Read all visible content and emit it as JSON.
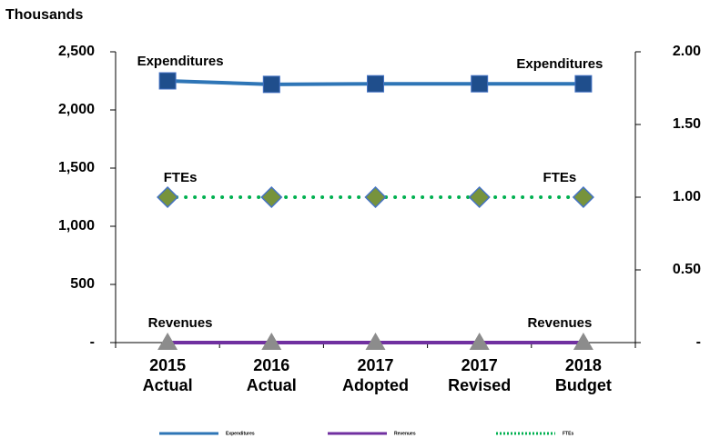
{
  "chart_data": {
    "type": "line",
    "y_axis_label": "Thousands",
    "categories": [
      [
        "2015",
        "Actual"
      ],
      [
        "2016",
        "Actual"
      ],
      [
        "2017",
        "Adopted"
      ],
      [
        "2017",
        "Revised"
      ],
      [
        "2018",
        "Budget"
      ]
    ],
    "ylim": [
      0,
      2500
    ],
    "yticks": [
      {
        "value": 0,
        "label": "-"
      },
      500,
      {
        "value": 1000,
        "label": "1,000"
      },
      {
        "value": 1500,
        "label": "1,500"
      },
      {
        "value": 2000,
        "label": "2,000"
      },
      {
        "value": 2500,
        "label": "2,500"
      }
    ],
    "y2lim": [
      0,
      2
    ],
    "y2ticks": [
      {
        "value": 0,
        "label": "-"
      },
      {
        "value": 0.5,
        "label": "0.50"
      },
      {
        "value": 1,
        "label": "1.00"
      },
      {
        "value": 1.5,
        "label": "1.50"
      },
      {
        "value": 2,
        "label": "2.00"
      }
    ],
    "series": [
      {
        "name": "Expenditures",
        "color": "#2e75b6",
        "marker_color": "#1f4e8c",
        "marker": "square",
        "values": [
          2250,
          2220,
          2225,
          2225,
          2225
        ]
      },
      {
        "name": "Revenues",
        "color": "#7030a0",
        "marker_color": "#8c8c8c",
        "marker": "triangle",
        "values": [
          0,
          0,
          0,
          0,
          0
        ]
      },
      {
        "name": "FTEs",
        "color": "#00b050",
        "marker_color": "#77933c",
        "marker": "diamond",
        "dashed": true,
        "axis": "y2",
        "values": [
          1,
          1,
          1,
          1,
          1
        ]
      }
    ],
    "legend": "bottom"
  }
}
